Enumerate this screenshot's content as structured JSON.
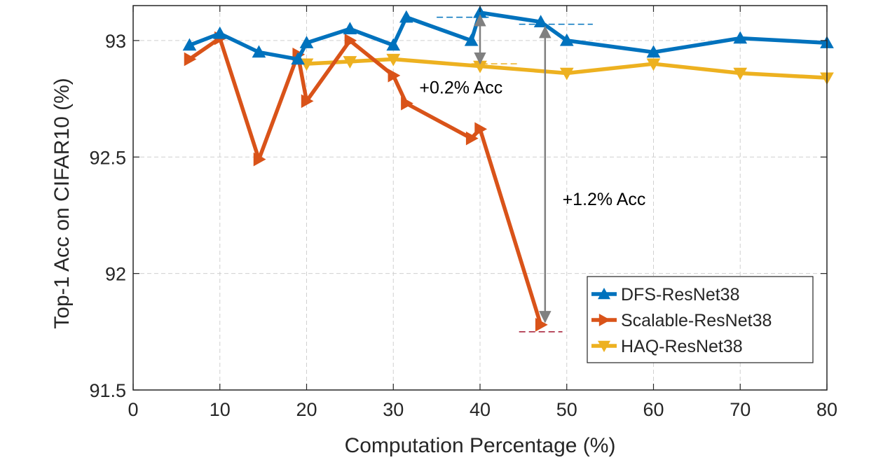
{
  "chart_data": {
    "type": "line",
    "title": "",
    "xlabel": "Computation Percentage (%)",
    "ylabel": "Top-1 Acc on CIFAR10 (%)",
    "xlim": [
      0,
      80
    ],
    "ylim": [
      91.5,
      93.15
    ],
    "xticks": [
      0,
      10,
      20,
      30,
      40,
      50,
      60,
      70,
      80
    ],
    "yticks": [
      91.5,
      92,
      92.5,
      93
    ],
    "xtick_labels": [
      "0",
      "10",
      "20",
      "30",
      "40",
      "50",
      "60",
      "70",
      "80"
    ],
    "ytick_labels": [
      "91.5",
      "92",
      "92.5",
      "93"
    ],
    "grid": true,
    "legend_position": "bottom-right",
    "series": [
      {
        "name": "DFS-ResNet38",
        "color": "#0072BD",
        "marker": "triangle-up",
        "x": [
          6.5,
          10,
          14.5,
          19,
          20,
          25,
          30,
          31.5,
          39,
          40,
          47,
          50,
          60,
          70,
          80
        ],
        "y": [
          92.98,
          93.03,
          92.95,
          92.92,
          92.99,
          93.05,
          92.98,
          93.1,
          93.0,
          93.12,
          93.08,
          93.0,
          92.95,
          93.01,
          92.99
        ]
      },
      {
        "name": "Scalable-ResNet38",
        "color": "#D95319",
        "marker": "triangle-right",
        "x": [
          6.5,
          10,
          14.5,
          19,
          20,
          25,
          30,
          31.5,
          39,
          40,
          47
        ],
        "y": [
          92.92,
          93.01,
          92.49,
          92.94,
          92.74,
          93.0,
          92.85,
          92.73,
          92.58,
          92.62,
          91.78
        ]
      },
      {
        "name": "HAQ-ResNet38",
        "color": "#EDB120",
        "marker": "triangle-down",
        "x": [
          20,
          25,
          30,
          40,
          50,
          60,
          70,
          80
        ],
        "y": [
          92.9,
          92.91,
          92.92,
          92.89,
          92.86,
          92.9,
          92.86,
          92.84
        ]
      }
    ],
    "annotations": [
      {
        "text": "+0.2% Acc",
        "x": 33,
        "y": 92.8,
        "arrow_x": 40,
        "arrow_y_from": 92.89,
        "arrow_y_to": 93.12
      },
      {
        "text": "+1.2% Acc",
        "x": 49.5,
        "y": 92.32,
        "arrow_x": 47.5,
        "arrow_y_from": 91.78,
        "arrow_y_to": 93.07
      }
    ],
    "reference_lines": [
      {
        "x_from": 35,
        "x_to": 41,
        "y": 93.1,
        "color": "#0072BD"
      },
      {
        "x_from": 44.5,
        "x_to": 53,
        "y": 93.07,
        "color": "#0072BD"
      },
      {
        "x_from": 39,
        "x_to": 44.5,
        "y": 92.9,
        "color": "#EDB120"
      },
      {
        "x_from": 44.5,
        "x_to": 49.5,
        "y": 91.75,
        "color": "#A2142F"
      }
    ]
  }
}
